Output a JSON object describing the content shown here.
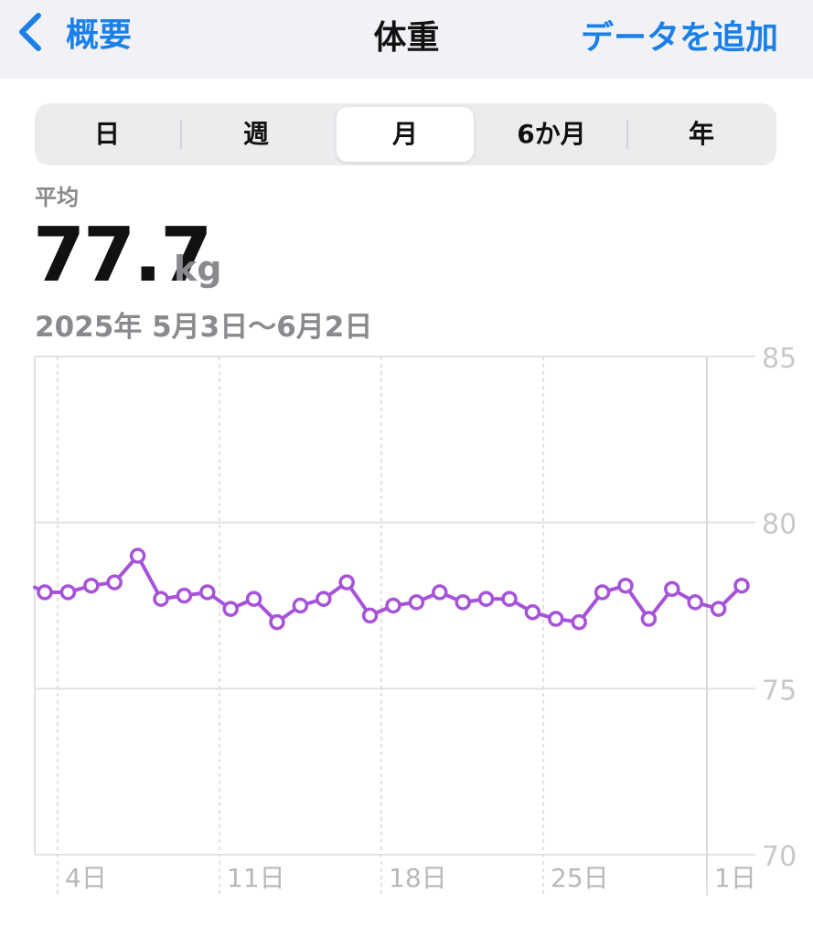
{
  "nav": {
    "back_label": "概要",
    "title": "体重",
    "add_label": "データを追加",
    "accent": "#1a80e8"
  },
  "segments": [
    "日",
    "週",
    "月",
    "6か月",
    "年"
  ],
  "selected_segment": "月",
  "summary": {
    "label": "平均",
    "value": "77.7",
    "unit": "kg",
    "range": "2025年 5月3日〜6月2日"
  },
  "chart_data": {
    "type": "line",
    "color": "#a653d8",
    "x_tick_labels": [
      "4日",
      "11日",
      "18日",
      "25日",
      "1日"
    ],
    "y_tick_labels": [
      "85",
      "80",
      "75",
      "70"
    ],
    "ylim": [
      70,
      85
    ],
    "x": [
      "5/3",
      "5/4",
      "5/5",
      "5/6",
      "5/7",
      "5/8",
      "5/9",
      "5/10",
      "5/11",
      "5/12",
      "5/13",
      "5/14",
      "5/15",
      "5/16",
      "5/17",
      "5/18",
      "5/19",
      "5/20",
      "5/21",
      "5/22",
      "5/23",
      "5/24",
      "5/25",
      "5/26",
      "5/27",
      "5/28",
      "5/29",
      "5/30",
      "5/31",
      "6/1",
      "6/2"
    ],
    "values": [
      77.9,
      77.9,
      78.1,
      78.2,
      79.0,
      77.7,
      77.8,
      77.9,
      77.4,
      77.7,
      77.0,
      77.5,
      77.7,
      78.2,
      77.2,
      77.5,
      77.6,
      77.9,
      77.6,
      77.7,
      77.7,
      77.3,
      77.1,
      77.0,
      77.9,
      78.1,
      77.1,
      78.0,
      77.6,
      77.4,
      78.1
    ],
    "grid": true
  }
}
